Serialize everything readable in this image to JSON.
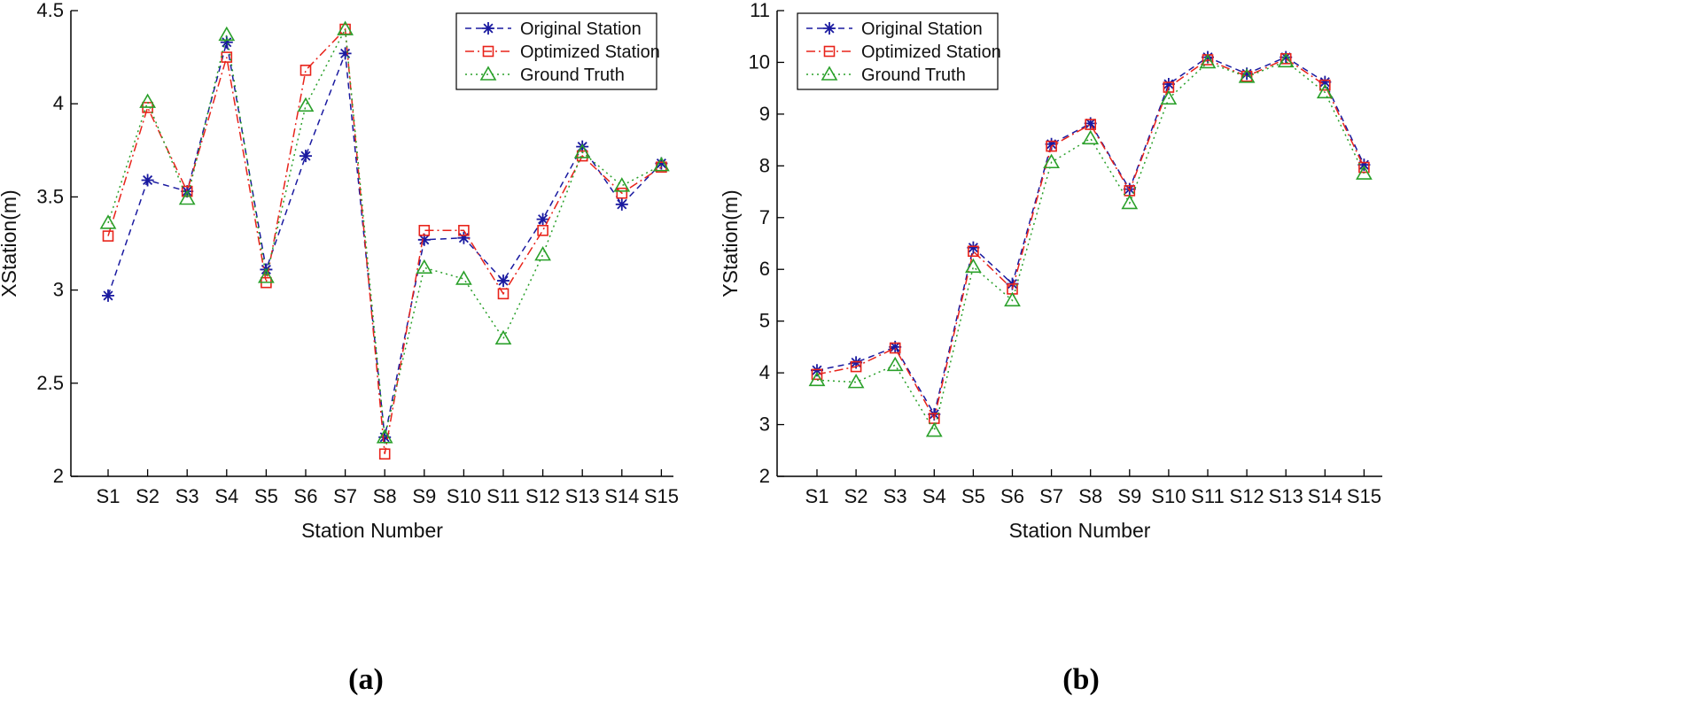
{
  "colors": {
    "original": "#1a1aa0",
    "optimized": "#e8231a",
    "ground_truth": "#2aa02a",
    "axis": "#000000"
  },
  "chart_data": [
    {
      "type": "line",
      "panel_label": "(a)",
      "title": "",
      "xlabel": "Station Number",
      "ylabel": "XStation(m)",
      "categories": [
        "S1",
        "S2",
        "S3",
        "S4",
        "S5",
        "S6",
        "S7",
        "S8",
        "S9",
        "S10",
        "S11",
        "S12",
        "S13",
        "S14",
        "S15"
      ],
      "ylim": [
        2,
        4.5
      ],
      "yticks": [
        2,
        2.5,
        3,
        3.5,
        4,
        4.5
      ],
      "ytick_labels": [
        "2",
        "2.5",
        "3",
        "3.5",
        "4",
        "4.5"
      ],
      "legend_position": "top-right",
      "series": [
        {
          "name": "Original Station",
          "key": "original",
          "marker": "asterisk",
          "dash": "dashed",
          "values": [
            2.97,
            3.59,
            3.53,
            4.33,
            3.11,
            3.72,
            4.27,
            2.21,
            3.27,
            3.28,
            3.05,
            3.38,
            3.77,
            3.46,
            3.68
          ]
        },
        {
          "name": "Optimized Station",
          "key": "optimized",
          "marker": "square",
          "dash": "dashdot",
          "values": [
            3.29,
            3.98,
            3.53,
            4.25,
            3.04,
            4.18,
            4.4,
            2.12,
            3.32,
            3.32,
            2.98,
            3.32,
            3.72,
            3.52,
            3.66
          ]
        },
        {
          "name": "Ground Truth",
          "key": "ground_truth",
          "marker": "triangle",
          "dash": "dotted",
          "values": [
            3.36,
            4.01,
            3.49,
            4.37,
            3.07,
            3.99,
            4.4,
            2.21,
            3.12,
            3.06,
            2.74,
            3.19,
            3.74,
            3.56,
            3.67
          ]
        }
      ]
    },
    {
      "type": "line",
      "panel_label": "(b)",
      "title": "",
      "xlabel": "Station Number",
      "ylabel": "YStation(m)",
      "categories": [
        "S1",
        "S2",
        "S3",
        "S4",
        "S5",
        "S6",
        "S7",
        "S8",
        "S9",
        "S10",
        "S11",
        "S12",
        "S13",
        "S14",
        "S15"
      ],
      "ylim": [
        2,
        11
      ],
      "yticks": [
        2,
        3,
        4,
        5,
        6,
        7,
        8,
        9,
        10,
        11
      ],
      "ytick_labels": [
        "2",
        "3",
        "4",
        "5",
        "6",
        "7",
        "8",
        "9",
        "10",
        "11"
      ],
      "legend_position": "top-left",
      "series": [
        {
          "name": "Original Station",
          "key": "original",
          "marker": "asterisk",
          "dash": "dashed",
          "values": [
            4.05,
            4.2,
            4.5,
            3.2,
            6.42,
            5.72,
            8.42,
            8.82,
            7.55,
            9.58,
            10.1,
            9.78,
            10.1,
            9.62,
            8.02
          ]
        },
        {
          "name": "Optimized Station",
          "key": "optimized",
          "marker": "square",
          "dash": "dashdot",
          "values": [
            3.97,
            4.12,
            4.48,
            3.12,
            6.35,
            5.62,
            8.38,
            8.8,
            7.52,
            9.52,
            10.05,
            9.73,
            10.07,
            9.56,
            7.97
          ]
        },
        {
          "name": "Ground Truth",
          "key": "ground_truth",
          "marker": "triangle",
          "dash": "dotted",
          "values": [
            3.86,
            3.82,
            4.15,
            2.88,
            6.05,
            5.4,
            8.07,
            8.53,
            7.28,
            9.3,
            10.0,
            9.72,
            10.02,
            9.42,
            7.85
          ]
        }
      ]
    }
  ]
}
